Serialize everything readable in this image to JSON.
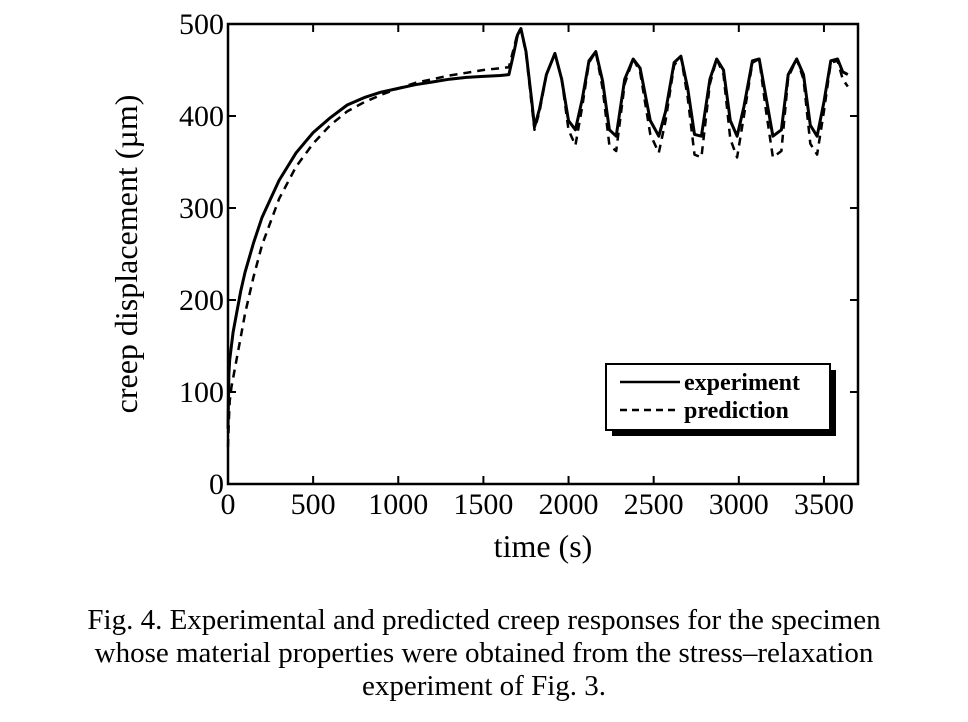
{
  "chart_data": {
    "type": "line",
    "title": "",
    "xlabel": "time (s)",
    "ylabel": "creep displacement (µm)",
    "xlim": [
      0,
      3700
    ],
    "ylim": [
      0,
      500
    ],
    "x_ticks": [
      "0",
      "500",
      "1000",
      "1500",
      "2000",
      "2500",
      "3000",
      "3500"
    ],
    "y_ticks": [
      "0",
      "100",
      "200",
      "300",
      "400",
      "500"
    ],
    "grid": false,
    "legend_position": "bottom-right",
    "series": [
      {
        "name": "experiment",
        "style": "solid",
        "color": "#000000",
        "x": [
          0,
          5,
          10,
          20,
          30,
          50,
          75,
          100,
          150,
          200,
          250,
          300,
          400,
          500,
          600,
          700,
          800,
          900,
          1000,
          1100,
          1200,
          1300,
          1400,
          1500,
          1600,
          1650,
          1680,
          1700,
          1720,
          1750,
          1785,
          1800,
          1830,
          1870,
          1920,
          1960,
          2000,
          2040,
          2080,
          2120,
          2160,
          2200,
          2240,
          2280,
          2330,
          2380,
          2420,
          2480,
          2530,
          2570,
          2620,
          2660,
          2700,
          2740,
          2780,
          2830,
          2870,
          2910,
          2950,
          2990,
          3030,
          3080,
          3120,
          3160,
          3200,
          3250,
          3290,
          3340,
          3380,
          3420,
          3460,
          3500,
          3540,
          3580,
          3610,
          3640
        ],
        "y": [
          60,
          120,
          135,
          150,
          165,
          185,
          210,
          230,
          262,
          290,
          310,
          330,
          360,
          382,
          398,
          412,
          420,
          426,
          430,
          434,
          437,
          440,
          442,
          443,
          444,
          445,
          470,
          488,
          495,
          470,
          415,
          388,
          408,
          445,
          468,
          440,
          395,
          385,
          418,
          460,
          470,
          438,
          385,
          378,
          440,
          462,
          452,
          395,
          378,
          405,
          458,
          465,
          430,
          380,
          378,
          440,
          462,
          450,
          395,
          378,
          410,
          460,
          462,
          420,
          378,
          385,
          445,
          462,
          445,
          390,
          378,
          415,
          460,
          462,
          448,
          445
        ]
      },
      {
        "name": "prediction",
        "style": "dashed",
        "color": "#000000",
        "x": [
          0,
          5,
          10,
          20,
          30,
          50,
          75,
          100,
          150,
          200,
          250,
          300,
          400,
          500,
          600,
          700,
          800,
          900,
          1000,
          1100,
          1200,
          1300,
          1400,
          1500,
          1600,
          1650,
          1680,
          1700,
          1720,
          1750,
          1785,
          1800,
          1830,
          1870,
          1920,
          1960,
          2000,
          2040,
          2080,
          2120,
          2160,
          2200,
          2240,
          2280,
          2330,
          2380,
          2420,
          2480,
          2530,
          2570,
          2620,
          2660,
          2700,
          2740,
          2780,
          2830,
          2870,
          2910,
          2950,
          2990,
          3030,
          3080,
          3120,
          3160,
          3200,
          3250,
          3290,
          3340,
          3380,
          3420,
          3460,
          3500,
          3540,
          3580,
          3610,
          3640
        ],
        "y": [
          40,
          70,
          90,
          105,
          115,
          135,
          160,
          185,
          225,
          260,
          285,
          310,
          345,
          370,
          390,
          405,
          415,
          423,
          430,
          436,
          440,
          444,
          447,
          450,
          452,
          453,
          475,
          490,
          495,
          468,
          410,
          385,
          405,
          445,
          468,
          440,
          385,
          368,
          410,
          458,
          470,
          430,
          368,
          362,
          435,
          462,
          448,
          380,
          360,
          395,
          455,
          465,
          420,
          358,
          355,
          435,
          462,
          445,
          375,
          355,
          400,
          458,
          462,
          405,
          355,
          362,
          442,
          462,
          440,
          370,
          358,
          405,
          458,
          460,
          440,
          432
        ]
      }
    ]
  },
  "caption": {
    "line1": "Fig. 4. Experimental and predicted creep responses for the specimen",
    "line2": "whose material properties were obtained from the stress–relaxation",
    "line3": "experiment of Fig. 3."
  }
}
